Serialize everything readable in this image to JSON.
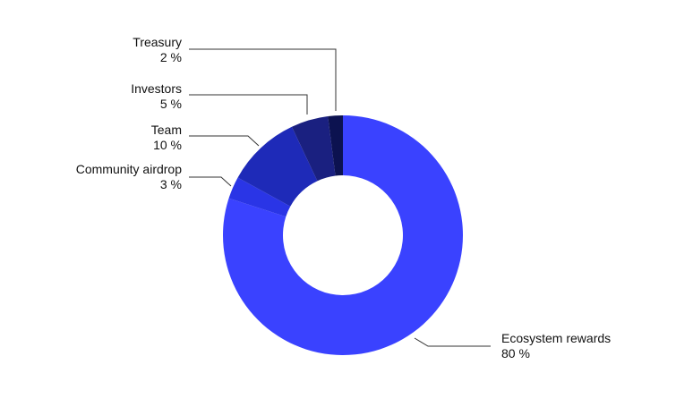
{
  "chart_data": {
    "type": "pie",
    "donut": true,
    "unit": "%",
    "slices": [
      {
        "label": "Ecosystem rewards",
        "value": 80,
        "value_label": "80 %",
        "color": "#3a42ff"
      },
      {
        "label": "Community airdrop",
        "value": 3,
        "value_label": "3 %",
        "color": "#2a35e6"
      },
      {
        "label": "Team",
        "value": 10,
        "value_label": "10 %",
        "color": "#1e2ab8"
      },
      {
        "label": "Investors",
        "value": 5,
        "value_label": "5 %",
        "color": "#1a2080"
      },
      {
        "label": "Treasury",
        "value": 2,
        "value_label": "2 %",
        "color": "#0c1250"
      }
    ],
    "legend": "none",
    "labels": "outside with leader lines"
  }
}
